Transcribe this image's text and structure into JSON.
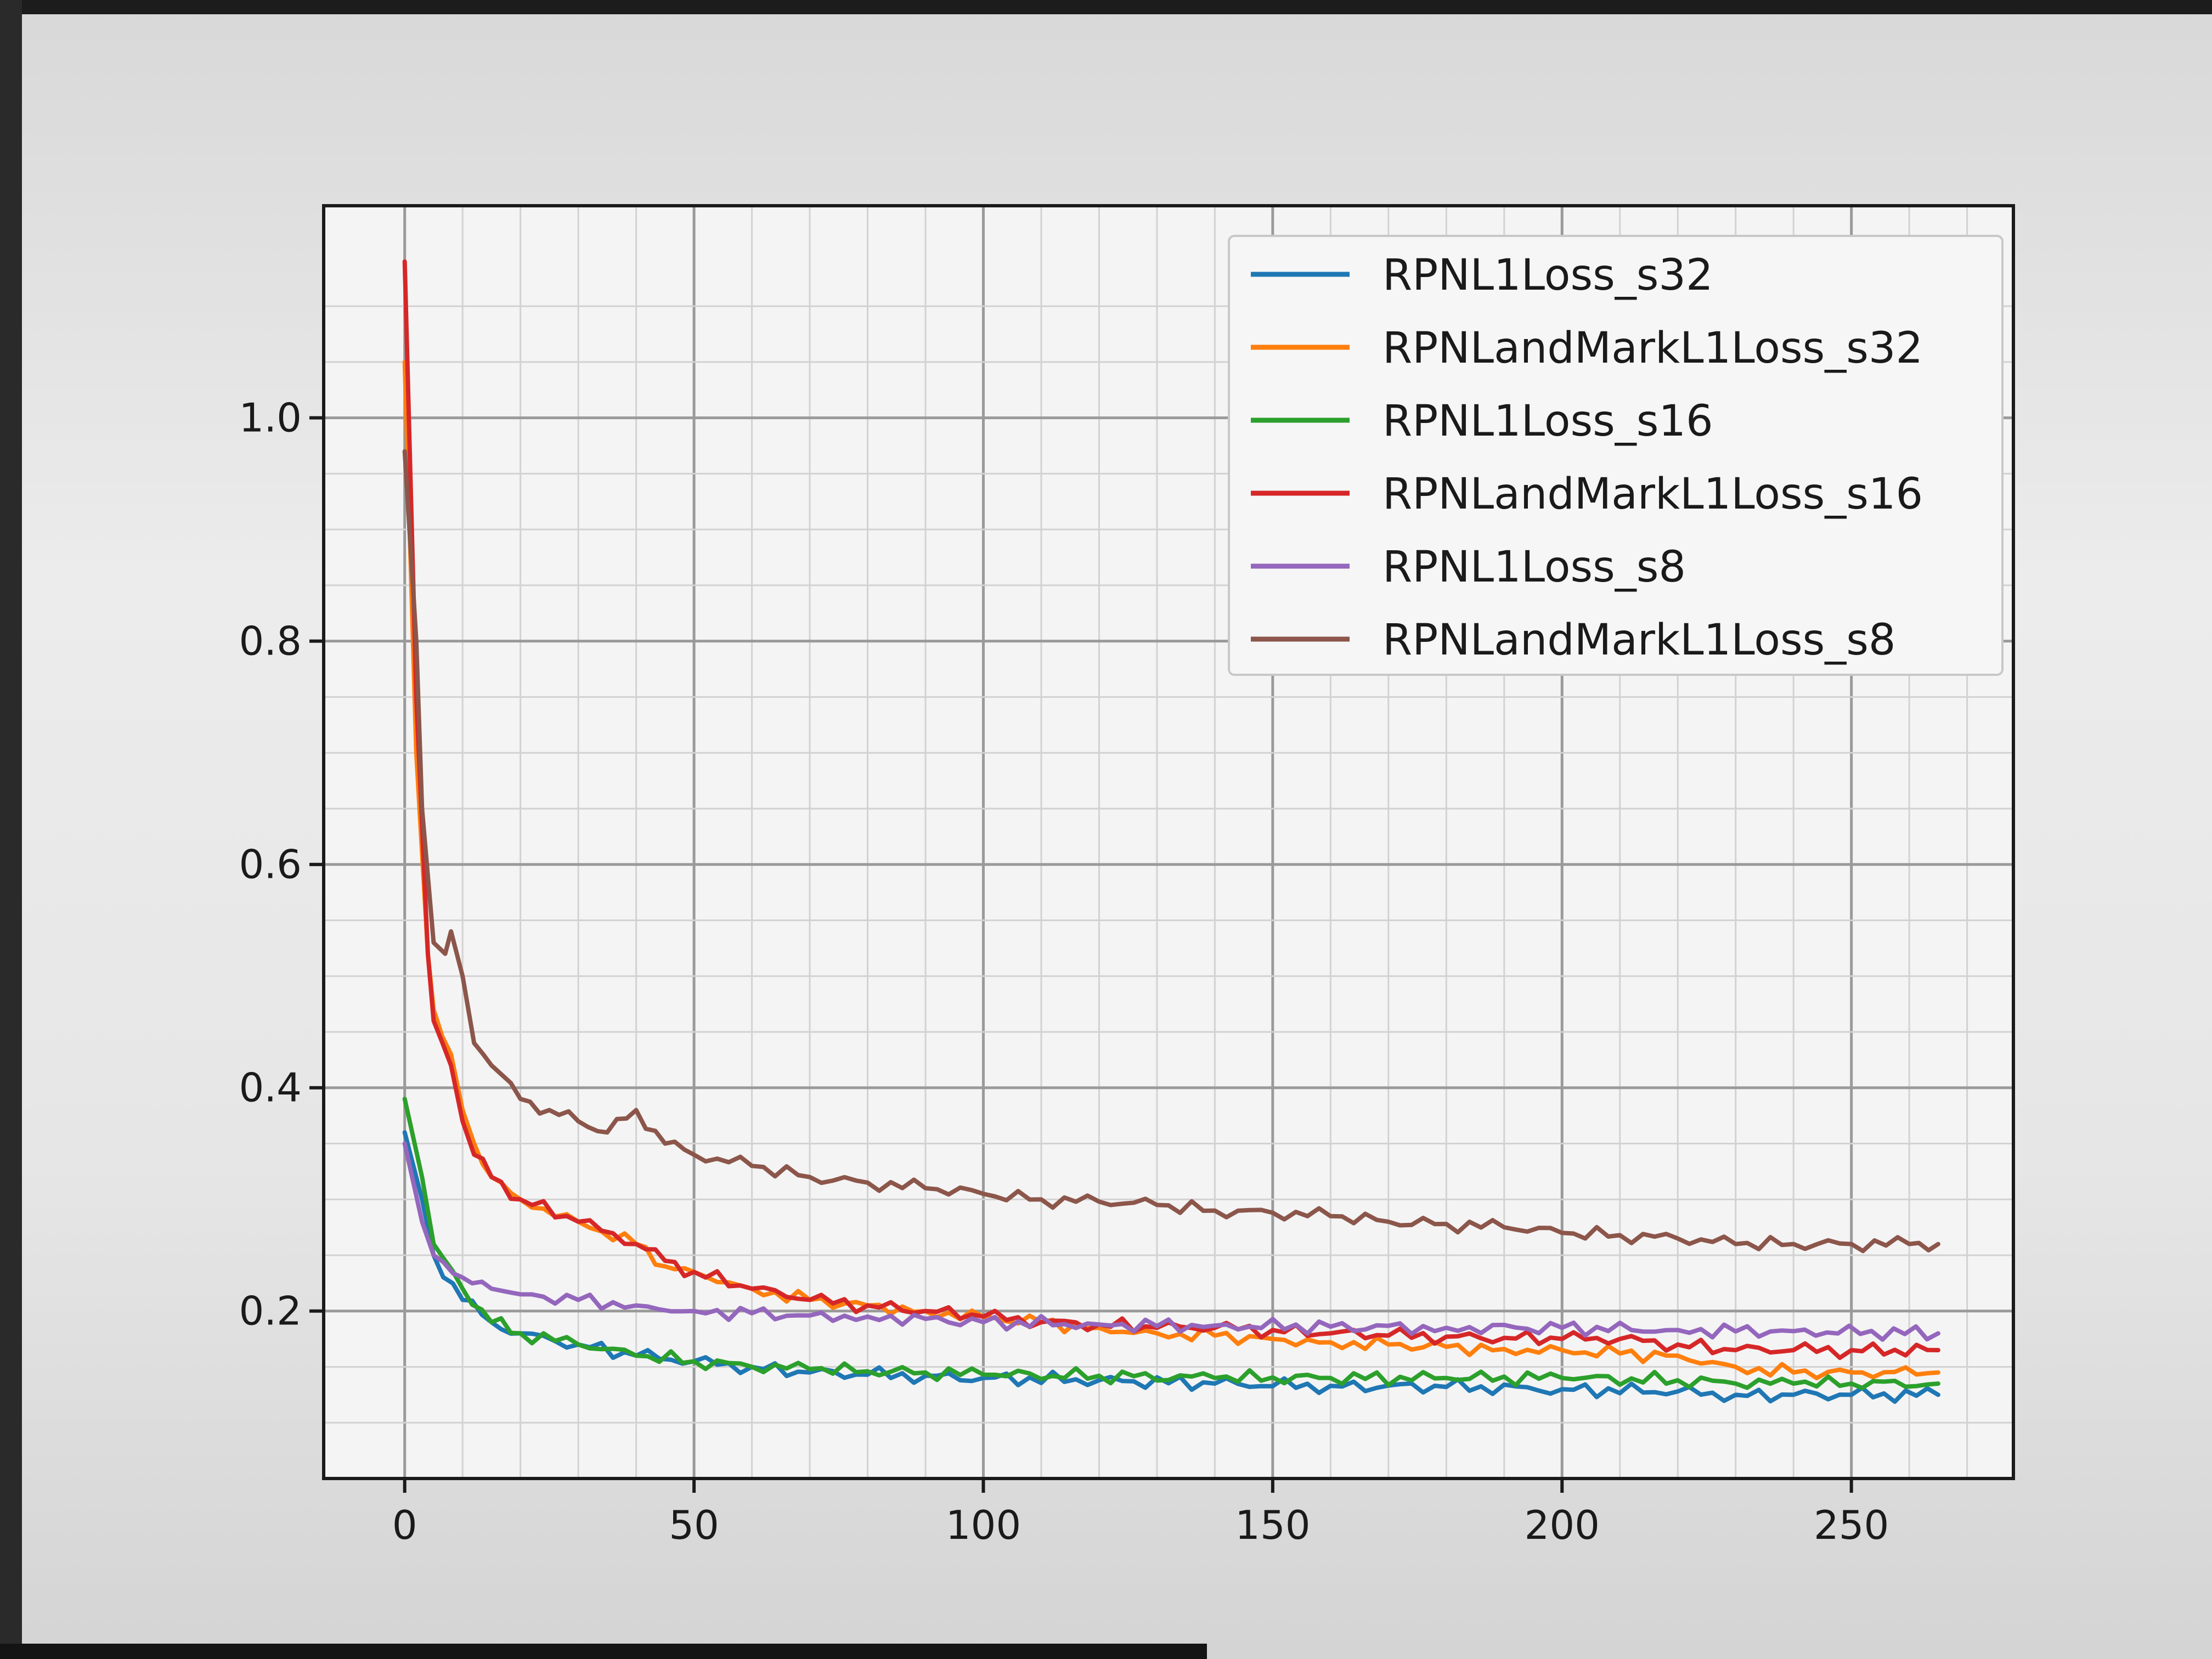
{
  "chart_data": {
    "type": "line",
    "title": "",
    "xlabel": "",
    "ylabel": "",
    "xlim": [
      -14,
      278
    ],
    "ylim": [
      0.05,
      1.19
    ],
    "xticks": [
      0,
      50,
      100,
      150,
      200,
      250
    ],
    "yticks": [
      0.2,
      0.4,
      0.6,
      0.8,
      1.0
    ],
    "xtick_labels": [
      "0",
      "50",
      "100",
      "150",
      "200",
      "250"
    ],
    "ytick_labels": [
      "0.2",
      "0.4",
      "0.6",
      "0.8",
      "1.0"
    ],
    "grid": "on",
    "legend_position": "upper right",
    "series": [
      {
        "name": "RPNL1Loss_s32",
        "color": "#1f77b4",
        "x": [
          0,
          3,
          5,
          10,
          15,
          20,
          30,
          40,
          50,
          60,
          70,
          80,
          90,
          100,
          120,
          140,
          160,
          180,
          200,
          220,
          230,
          240,
          250,
          265
        ],
        "y": [
          0.36,
          0.3,
          0.25,
          0.21,
          0.19,
          0.18,
          0.17,
          0.16,
          0.155,
          0.15,
          0.145,
          0.143,
          0.142,
          0.14,
          0.138,
          0.135,
          0.133,
          0.132,
          0.13,
          0.128,
          0.125,
          0.125,
          0.125,
          0.125
        ]
      },
      {
        "name": "RPNLandMarkL1Loss_s32",
        "color": "#ff7f0e",
        "x": [
          0,
          2,
          4,
          5,
          8,
          10,
          12,
          15,
          20,
          30,
          40,
          45,
          50,
          60,
          70,
          80,
          90,
          100,
          110,
          120,
          130,
          140,
          150,
          160,
          170,
          180,
          190,
          200,
          210,
          220,
          230,
          240,
          250,
          265
        ],
        "y": [
          1.05,
          0.7,
          0.52,
          0.47,
          0.43,
          0.38,
          0.35,
          0.32,
          0.3,
          0.28,
          0.26,
          0.24,
          0.235,
          0.22,
          0.21,
          0.205,
          0.2,
          0.195,
          0.19,
          0.185,
          0.18,
          0.178,
          0.175,
          0.172,
          0.17,
          0.168,
          0.166,
          0.165,
          0.162,
          0.16,
          0.15,
          0.145,
          0.145,
          0.145
        ]
      },
      {
        "name": "RPNL1Loss_s16",
        "color": "#2ca02c",
        "x": [
          0,
          3,
          5,
          10,
          15,
          20,
          30,
          40,
          50,
          60,
          70,
          80,
          90,
          100,
          120,
          140,
          160,
          180,
          200,
          220,
          230,
          240,
          250,
          265
        ],
        "y": [
          0.39,
          0.32,
          0.26,
          0.22,
          0.19,
          0.18,
          0.17,
          0.16,
          0.155,
          0.15,
          0.148,
          0.146,
          0.145,
          0.143,
          0.142,
          0.14,
          0.14,
          0.14,
          0.14,
          0.138,
          0.135,
          0.135,
          0.135,
          0.135
        ]
      },
      {
        "name": "RPNLandMarkL1Loss_s16",
        "color": "#d62728",
        "x": [
          0,
          2,
          4,
          5,
          8,
          10,
          12,
          15,
          20,
          30,
          40,
          45,
          50,
          60,
          70,
          80,
          90,
          100,
          110,
          120,
          130,
          140,
          150,
          160,
          170,
          180,
          190,
          200,
          210,
          220,
          230,
          240,
          250,
          265
        ],
        "y": [
          1.14,
          0.75,
          0.52,
          0.46,
          0.42,
          0.37,
          0.34,
          0.32,
          0.3,
          0.28,
          0.26,
          0.245,
          0.235,
          0.22,
          0.21,
          0.205,
          0.2,
          0.195,
          0.19,
          0.188,
          0.185,
          0.185,
          0.183,
          0.18,
          0.178,
          0.177,
          0.176,
          0.175,
          0.175,
          0.17,
          0.165,
          0.165,
          0.165,
          0.165
        ]
      },
      {
        "name": "RPNL1Loss_s8",
        "color": "#9467bd",
        "x": [
          0,
          3,
          5,
          10,
          15,
          20,
          30,
          40,
          50,
          60,
          70,
          80,
          90,
          100,
          120,
          140,
          160,
          180,
          200,
          220,
          240,
          265
        ],
        "y": [
          0.35,
          0.28,
          0.25,
          0.23,
          0.22,
          0.215,
          0.21,
          0.205,
          0.2,
          0.198,
          0.196,
          0.195,
          0.193,
          0.19,
          0.188,
          0.187,
          0.186,
          0.185,
          0.185,
          0.183,
          0.182,
          0.18
        ]
      },
      {
        "name": "RPNLandMarkL1Loss_s8",
        "color": "#8c564b",
        "x": [
          0,
          2,
          3,
          5,
          7,
          8,
          10,
          12,
          15,
          20,
          25,
          30,
          35,
          40,
          45,
          50,
          60,
          70,
          80,
          90,
          100,
          110,
          120,
          130,
          140,
          150,
          160,
          170,
          180,
          190,
          200,
          210,
          220,
          230,
          240,
          250,
          260,
          265
        ],
        "y": [
          0.97,
          0.8,
          0.65,
          0.53,
          0.52,
          0.54,
          0.5,
          0.44,
          0.42,
          0.39,
          0.38,
          0.37,
          0.36,
          0.38,
          0.35,
          0.34,
          0.33,
          0.32,
          0.315,
          0.31,
          0.305,
          0.3,
          0.298,
          0.295,
          0.29,
          0.288,
          0.285,
          0.28,
          0.278,
          0.275,
          0.27,
          0.268,
          0.265,
          0.26,
          0.26,
          0.26,
          0.26,
          0.26
        ]
      }
    ]
  }
}
